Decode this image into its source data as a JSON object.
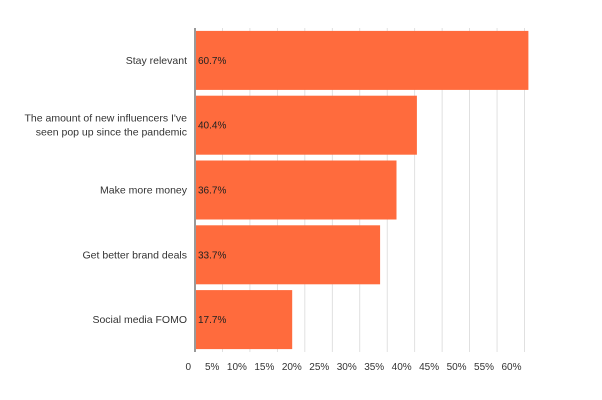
{
  "chart_data": {
    "type": "bar",
    "orientation": "horizontal",
    "title": "",
    "xlabel": "",
    "ylabel": "",
    "categories": [
      [
        "Stay relevant"
      ],
      [
        "The amount of new influencers I've",
        "seen pop up since the pandemic"
      ],
      [
        "Make more money"
      ],
      [
        "Get better brand deals"
      ],
      [
        "Social media FOMO"
      ]
    ],
    "values": [
      60.7,
      40.4,
      36.7,
      33.7,
      17.7
    ],
    "data_labels": [
      "60.7%",
      "40.4%",
      "36.7%",
      "33.7%",
      "17.7%"
    ],
    "xlim": [
      0,
      62
    ],
    "x_ticks": [
      0,
      5,
      10,
      15,
      20,
      25,
      30,
      35,
      40,
      45,
      50,
      55,
      60
    ],
    "x_tick_labels": [
      "0",
      "5%",
      "10%",
      "15%",
      "20%",
      "25%",
      "30%",
      "35%",
      "40%",
      "45%",
      "50%",
      "55%",
      "60%"
    ],
    "grid": "vertical",
    "legend": "none",
    "colors": {
      "bar": "#FF6B3D",
      "grid": "#d9d9d9",
      "axis": "#333333"
    }
  }
}
